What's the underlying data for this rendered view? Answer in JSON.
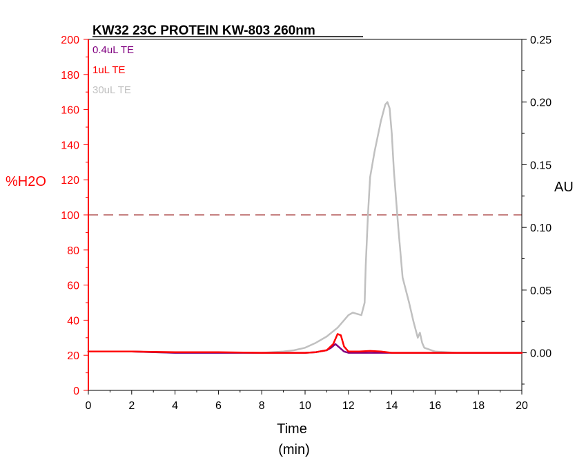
{
  "chart_data": {
    "type": "line",
    "title": "KW32 23C PROTEIN KW-803 260nm",
    "xlabel": "Time",
    "xlabel_unit": "(min)",
    "ylabel_left": "%H2O",
    "ylabel_right": "AU",
    "xlim": [
      0,
      20
    ],
    "ylim_left": [
      0,
      200
    ],
    "ylim_right": [
      -0.03,
      0.25
    ],
    "x_ticks": [
      "0",
      "2",
      "4",
      "6",
      "8",
      "10",
      "12",
      "14",
      "16",
      "18",
      "20"
    ],
    "y_left_ticks": [
      "0",
      "20",
      "40",
      "60",
      "80",
      "100",
      "120",
      "140",
      "160",
      "180",
      "200"
    ],
    "y_right_ticks": [
      "0.00",
      "0.05",
      "0.10",
      "0.15",
      "0.20",
      "0.25"
    ],
    "legend_position": "top-left",
    "grid": false,
    "reference_line": {
      "axis": "left",
      "value": 100,
      "style": "dashed",
      "color": "#8b0000"
    },
    "colors": {
      "left_axis": "#ff0000",
      "right_axis": "#000000"
    },
    "series": [
      {
        "name": "0.4uL TE",
        "axis": "right",
        "color": "#800080",
        "x": [
          0,
          2,
          4,
          6,
          8,
          10,
          10.5,
          11,
          11.2,
          11.4,
          11.6,
          11.8,
          12,
          13,
          14,
          16,
          18,
          20
        ],
        "y": [
          0.001,
          0.001,
          0.0,
          0.0,
          0.0,
          0.0,
          0.0005,
          0.002,
          0.004,
          0.007,
          0.004,
          0.001,
          0.0,
          0.0,
          0.0,
          0.0,
          0.0,
          0.0
        ]
      },
      {
        "name": "1uL TE",
        "axis": "right",
        "color": "#ff0000",
        "x": [
          0,
          2,
          4,
          6,
          8,
          10,
          10.5,
          11,
          11.3,
          11.5,
          11.65,
          11.8,
          12,
          12.5,
          13,
          13.5,
          14,
          16,
          18,
          20
        ],
        "y": [
          0.001,
          0.001,
          0.0005,
          0.0005,
          0.0,
          0.0,
          0.0005,
          0.002,
          0.007,
          0.015,
          0.014,
          0.005,
          0.001,
          0.001,
          0.0015,
          0.001,
          0.0,
          0.0,
          0.0,
          0.0
        ]
      },
      {
        "name": "30uL TE",
        "axis": "right",
        "color": "#c0c0c0",
        "x": [
          0,
          2,
          4,
          6,
          8,
          9,
          9.5,
          10,
          10.5,
          11,
          11.5,
          11.8,
          12,
          12.2,
          12.4,
          12.6,
          12.75,
          12.8,
          12.9,
          13,
          13.2,
          13.5,
          13.7,
          13.8,
          13.9,
          14,
          14.1,
          14.3,
          14.5,
          14.8,
          15,
          15.2,
          15.3,
          15.4,
          15.5,
          16,
          17,
          18,
          20
        ],
        "y": [
          0.001,
          0.001,
          0.0,
          0.0,
          0.0,
          0.001,
          0.002,
          0.004,
          0.008,
          0.013,
          0.02,
          0.026,
          0.03,
          0.032,
          0.031,
          0.03,
          0.04,
          0.07,
          0.11,
          0.14,
          0.16,
          0.185,
          0.198,
          0.2,
          0.195,
          0.175,
          0.145,
          0.1,
          0.06,
          0.04,
          0.025,
          0.012,
          0.016,
          0.008,
          0.004,
          0.001,
          0.0,
          0.0,
          0.0
        ]
      }
    ]
  }
}
